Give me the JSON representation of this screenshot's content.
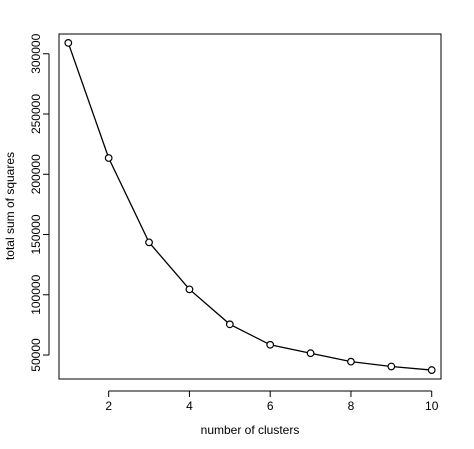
{
  "chart_data": {
    "type": "line",
    "title": "",
    "xlabel": "number of clusters",
    "ylabel": "total sum of squares",
    "x": [
      1,
      2,
      3,
      4,
      5,
      6,
      7,
      8,
      9,
      10
    ],
    "series": [
      {
        "values": [
          309000,
          213500,
          143500,
          104500,
          75500,
          58500,
          51500,
          44500,
          40500,
          37500
        ],
        "color": "#000000",
        "marker": "open-circle"
      }
    ],
    "xlim": [
      0.77,
      10.23
    ],
    "ylim": [
      30100,
      316400
    ],
    "xticks": [
      2,
      4,
      6,
      8,
      10
    ],
    "xtick_labels": [
      "2",
      "4",
      "6",
      "8",
      "10"
    ],
    "yticks": [
      50000,
      100000,
      150000,
      200000,
      250000,
      300000
    ],
    "ytick_labels": [
      "50000",
      "100000",
      "150000",
      "200000",
      "250000",
      "300000"
    ],
    "grid": false,
    "legend": "none"
  }
}
